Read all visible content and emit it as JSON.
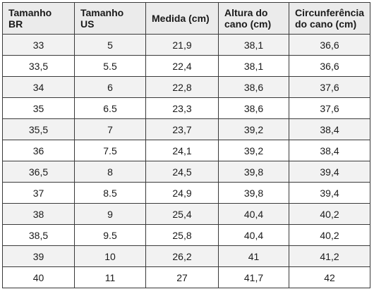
{
  "table": {
    "header": [
      "Tamanho BR",
      "Tamanho US",
      "Medida (cm)",
      "Altura do cano (cm)",
      "Circunferência do cano (cm)"
    ],
    "rows": [
      [
        "33",
        "5",
        "21,9",
        "38,1",
        "36,6"
      ],
      [
        "33,5",
        "5.5",
        "22,4",
        "38,1",
        "36,6"
      ],
      [
        "34",
        "6",
        "22,8",
        "38,6",
        "37,6"
      ],
      [
        "35",
        "6.5",
        "23,3",
        "38,6",
        "37,6"
      ],
      [
        "35,5",
        "7",
        "23,7",
        "39,2",
        "38,4"
      ],
      [
        "36",
        "7.5",
        "24,1",
        "39,2",
        "38,4"
      ],
      [
        "36,5",
        "8",
        "24,5",
        "39,8",
        "39,4"
      ],
      [
        "37",
        "8.5",
        "24,9",
        "39,8",
        "39,4"
      ],
      [
        "38",
        "9",
        "25,4",
        "40,4",
        "40,2"
      ],
      [
        "38,5",
        "9.5",
        "25,8",
        "40,4",
        "40,2"
      ],
      [
        "39",
        "10",
        "26,2",
        "41",
        "41,2"
      ],
      [
        "40",
        "11",
        "27",
        "41,7",
        "42"
      ]
    ]
  }
}
